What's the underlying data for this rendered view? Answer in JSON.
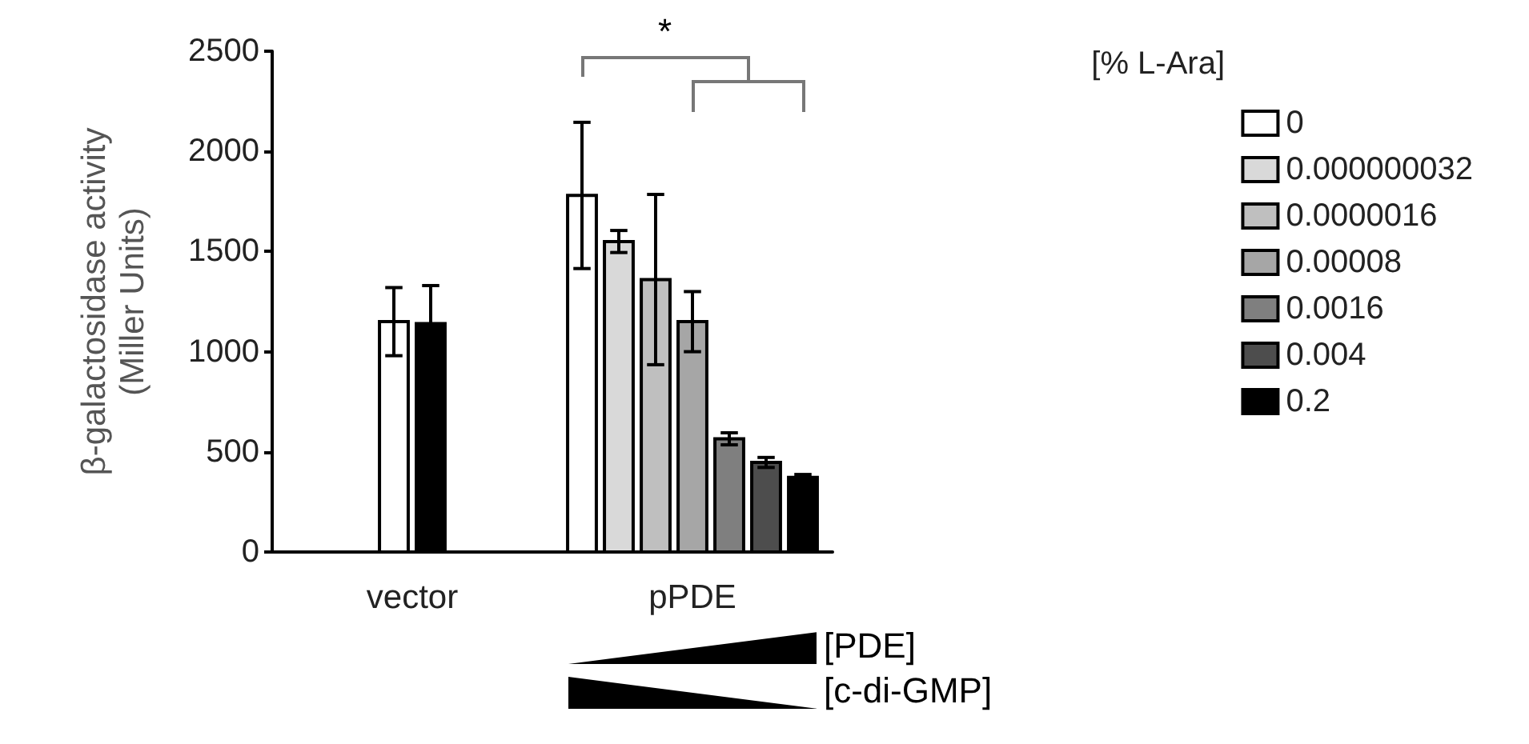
{
  "chart_data": {
    "type": "bar",
    "ylabel": "β-galactosidase activity\n(Miller Units)",
    "legend_title": "[% L-Ara]",
    "categories": [
      "vector",
      "pPDE"
    ],
    "series": [
      {
        "name": "0",
        "color": "#ffffff",
        "values": [
          1150,
          1780
        ],
        "errors": [
          170,
          365
        ]
      },
      {
        "name": "0.000000032",
        "color": "#d9d9d9",
        "values": [
          null,
          1550
        ],
        "errors": [
          null,
          55
        ]
      },
      {
        "name": "0.0000016",
        "color": "#bfbfbf",
        "values": [
          null,
          1360
        ],
        "errors": [
          null,
          425
        ]
      },
      {
        "name": "0.00008",
        "color": "#a6a6a6",
        "values": [
          null,
          1150
        ],
        "errors": [
          null,
          150
        ]
      },
      {
        "name": "0.0016",
        "color": "#7f7f7f",
        "values": [
          null,
          565
        ],
        "errors": [
          null,
          30
        ]
      },
      {
        "name": "0.004",
        "color": "#4d4d4d",
        "values": [
          null,
          447
        ],
        "errors": [
          null,
          25
        ]
      },
      {
        "name": "0.2",
        "color": "#000000",
        "values": [
          1140,
          372
        ],
        "errors": [
          190,
          15
        ]
      }
    ],
    "ylim": [
      0,
      2500
    ],
    "yticks": [
      0,
      500,
      1000,
      1500,
      2000,
      2500
    ],
    "grid": false,
    "legend": "right",
    "annotations": [
      "*",
      "[PDE]",
      "[c-di-GMP]"
    ]
  }
}
